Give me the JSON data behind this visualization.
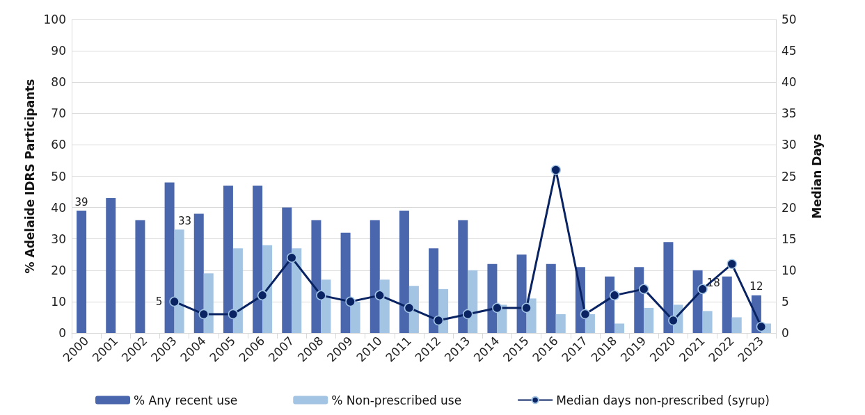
{
  "chart_data": {
    "type": "bar",
    "ylabel": "% Adelaide IDRS Participants",
    "y2label": "Median Days",
    "categories": [
      "2000",
      "2001",
      "2002",
      "2003",
      "2004",
      "2005",
      "2006",
      "2007",
      "2008",
      "2009",
      "2010",
      "2011",
      "2012",
      "2013",
      "2014",
      "2015",
      "2016",
      "2017",
      "2018",
      "2019",
      "2020",
      "2021",
      "2022",
      "2023"
    ],
    "series": [
      {
        "name": "% Any recent use",
        "color": "#4a67ae",
        "values": [
          39,
          43,
          36,
          48,
          38,
          47,
          47,
          40,
          36,
          32,
          36,
          39,
          27,
          36,
          22,
          25,
          22,
          21,
          18,
          21,
          29,
          20,
          18,
          12
        ],
        "value_labels": [
          "39",
          null,
          null,
          null,
          null,
          null,
          null,
          null,
          null,
          null,
          null,
          null,
          null,
          null,
          null,
          null,
          null,
          null,
          null,
          null,
          null,
          null,
          "18",
          "12"
        ]
      },
      {
        "name": "% Non-prescribed use",
        "color": "#a3c4e3",
        "values": [
          null,
          null,
          null,
          33,
          19,
          27,
          28,
          27,
          17,
          10,
          17,
          15,
          14,
          20,
          9,
          11,
          6,
          6,
          3,
          8,
          9,
          7,
          5,
          3
        ],
        "value_labels": [
          null,
          null,
          null,
          "33",
          null,
          null,
          null,
          null,
          null,
          null,
          null,
          null,
          null,
          null,
          null,
          null,
          null,
          null,
          null,
          null,
          null,
          null,
          null,
          null
        ]
      },
      {
        "name": "Median days non-prescribed (syrup)",
        "type": "line",
        "axis": "y2",
        "color": "#0a2463",
        "marker": "circle",
        "values": [
          null,
          null,
          null,
          5,
          3,
          3,
          6,
          12,
          6,
          5,
          6,
          4,
          2,
          3,
          4,
          4,
          26,
          3,
          6,
          7,
          2,
          7,
          11,
          1
        ],
        "value_labels": [
          null,
          null,
          null,
          "5",
          null,
          null,
          null,
          null,
          null,
          null,
          null,
          null,
          null,
          null,
          null,
          null,
          null,
          null,
          null,
          null,
          null,
          null,
          null,
          null
        ]
      }
    ],
    "ylim": [
      0,
      100
    ],
    "yticks": [
      0,
      10,
      20,
      30,
      40,
      50,
      60,
      70,
      80,
      90,
      100
    ],
    "y2lim": [
      0,
      50
    ],
    "y2ticks": [
      0,
      5,
      10,
      15,
      20,
      25,
      30,
      35,
      40,
      45,
      50
    ],
    "grid": "y",
    "legend": "bottom"
  }
}
